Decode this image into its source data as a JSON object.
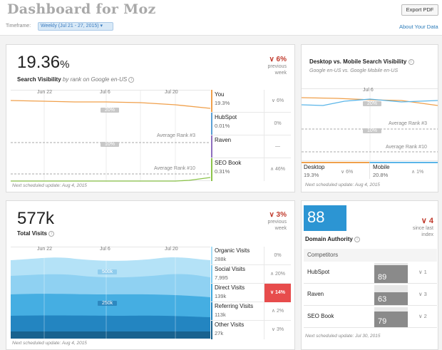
{
  "header": {
    "title": "Dashboard for Moz",
    "export_label": "Export PDF",
    "timeframe_label": "Timeframe:",
    "timeframe_value": "Weekly (Jul 21 - 27, 2015) ▾",
    "about_label": "About Your Data"
  },
  "visibility": {
    "value": "19.36",
    "unit": "%",
    "label": "Search Visibility",
    "sublabel": "by rank on Google en-US",
    "change": "∨ 6%",
    "change_sub1": "previous",
    "change_sub2": "week",
    "x_labels": [
      "Jun 22",
      "Jul 6",
      "Jul 20"
    ],
    "chip_20": "20%",
    "chip_10": "10%",
    "avg3": "Average Rank #3",
    "avg10": "Average Rank #10",
    "footnote": "Next scheduled update: Aug 4, 2015",
    "legend": [
      {
        "name": "You",
        "value": "19.3%",
        "change": "∨ 6%",
        "color": "#f0a04b"
      },
      {
        "name": "HubSpot",
        "value": "0.01%",
        "change": "0%",
        "color": "#5a9fd4"
      },
      {
        "name": "Raven",
        "value": "",
        "change": "—",
        "color": "#8e6fbf"
      },
      {
        "name": "SEO Book",
        "value": "0.31%",
        "change": "∧ 46%",
        "color": "#8bc34a"
      }
    ]
  },
  "desktop_mobile": {
    "title": "Desktop vs. Mobile Search Visibility",
    "sublabel": "Google en-US vs. Google Mobile en-US",
    "x_label": "Jul 6",
    "chip_20": "20%",
    "chip_10": "10%",
    "avg3": "Average Rank #3",
    "avg10": "Average Rank #10",
    "desktop_label": "Desktop",
    "desktop_value": "19.3%",
    "desktop_change": "∨ 6%",
    "mobile_label": "Mobile",
    "mobile_value": "20.8%",
    "mobile_change": "∧ 1%",
    "footnote": "Next scheduled update: Aug 4, 2015",
    "desktop_color": "#f0a04b",
    "mobile_color": "#5ab5e8"
  },
  "visits": {
    "value": "577k",
    "label": "Total Visits",
    "change": "∨ 3%",
    "change_sub1": "previous",
    "change_sub2": "week",
    "x_labels": [
      "Jun 22",
      "Jul 6",
      "Jul 20"
    ],
    "chip_500": "500k",
    "chip_250": "250k",
    "footnote": "Next scheduled update: Aug 4, 2015",
    "legend": [
      {
        "name": "Organic Visits",
        "value": "288k",
        "change": "0%",
        "color": "#a6dcf5"
      },
      {
        "name": "Social Visits",
        "value": "7,995",
        "change": "∧ 20%",
        "color": "#7ccaf0"
      },
      {
        "name": "Direct Visits",
        "value": "139k",
        "change": "∨ 14%",
        "color": "#3aa7de",
        "highlight": true
      },
      {
        "name": "Referring Visits",
        "value": "113k",
        "change": "∧ 2%",
        "color": "#1f86c2"
      },
      {
        "name": "Other Visits",
        "value": "27k",
        "change": "∨ 3%",
        "color": "#165f8c"
      }
    ]
  },
  "domain_authority": {
    "value": "88",
    "label": "Domain Authority",
    "change": "∨ 4",
    "change_sub1": "since last",
    "change_sub2": "index",
    "competitors_label": "Competitors",
    "competitors": [
      {
        "name": "HubSpot",
        "value": "89",
        "score": 89,
        "change": "∨ 1"
      },
      {
        "name": "Raven",
        "value": "63",
        "score": 63,
        "change": "∨ 3"
      },
      {
        "name": "SEO Book",
        "value": "79",
        "score": 79,
        "change": "∨ 2"
      }
    ],
    "footnote": "Next scheduled update: Jul 30, 2015"
  }
}
